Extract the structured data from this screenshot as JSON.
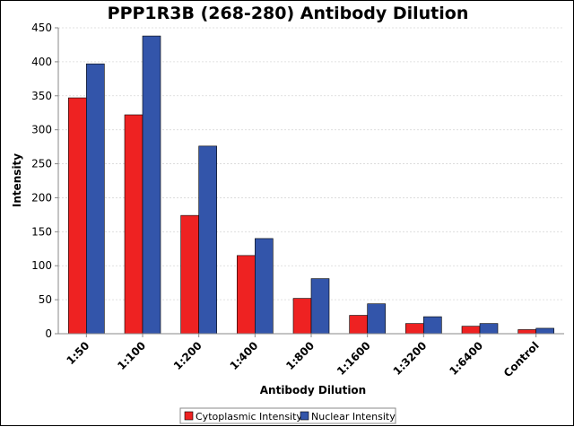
{
  "chart_data": {
    "type": "bar",
    "title": "PPP1R3B (268-280) Antibody Dilution",
    "xlabel": "Antibody Dilution",
    "ylabel": "Intensity",
    "ylim": [
      0,
      450
    ],
    "yticks": [
      0,
      50,
      100,
      150,
      200,
      250,
      300,
      350,
      400,
      450
    ],
    "grid": true,
    "legend_position": "bottom-center",
    "categories": [
      "1:50",
      "1:100",
      "1:200",
      "1:400",
      "1:800",
      "1:1600",
      "1:3200",
      "1:6400",
      "Control"
    ],
    "series": [
      {
        "name": "Cytoplasmic Intensity",
        "color": "#ee2222",
        "values": [
          347,
          322,
          174,
          115,
          52,
          27,
          15,
          11,
          6
        ]
      },
      {
        "name": "Nuclear Intensity",
        "color": "#3355aa",
        "values": [
          397,
          438,
          276,
          140,
          81,
          44,
          25,
          15,
          8
        ]
      }
    ]
  }
}
